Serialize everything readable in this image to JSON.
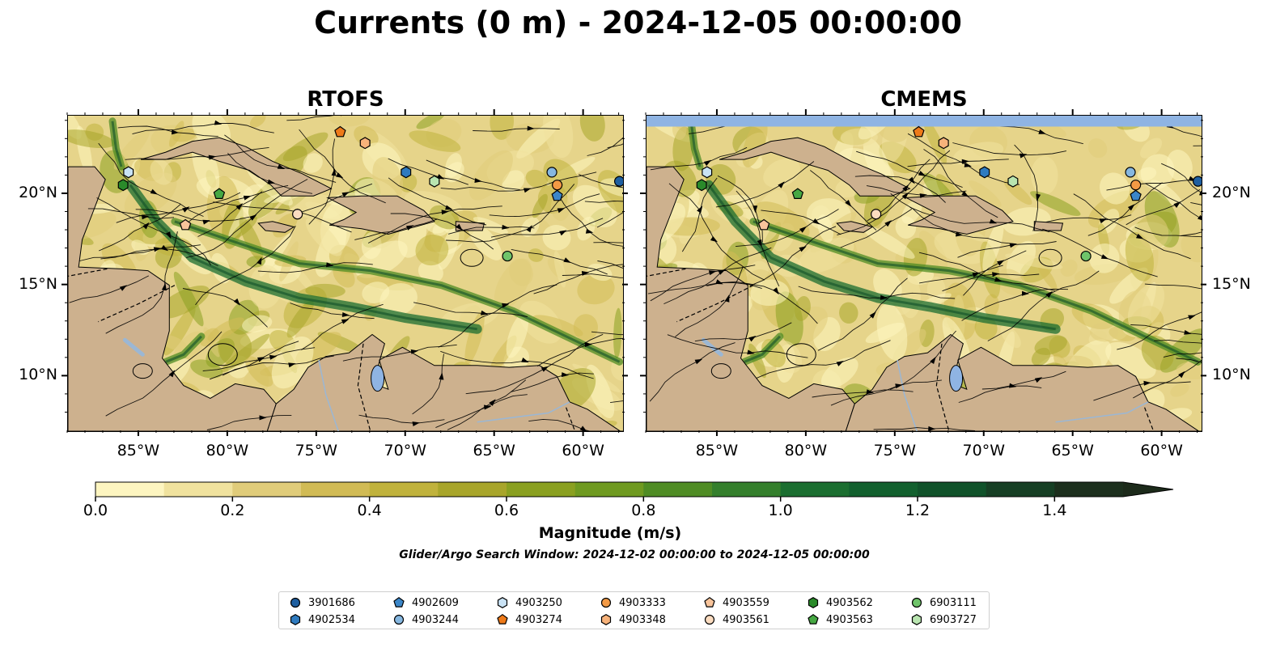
{
  "title": "Currents (0 m) - 2024-12-05 00:00:00",
  "panels": [
    {
      "title": "RTOFS",
      "has_nodata_band": false
    },
    {
      "title": "CMEMS",
      "has_nodata_band": true
    }
  ],
  "map": {
    "lon_range": [
      -89.0,
      -57.8
    ],
    "lat_range": [
      7.0,
      24.3
    ],
    "lon_ticks": [
      -85,
      -80,
      -75,
      -70,
      -65,
      -60
    ],
    "lon_tick_labels": [
      "85°W",
      "80°W",
      "75°W",
      "70°W",
      "65°W",
      "60°W"
    ],
    "lat_ticks": [
      10,
      15,
      20
    ],
    "lat_tick_labels": [
      "10°N",
      "15°N",
      "20°N"
    ],
    "colors": {
      "land": "#cdb18e",
      "water_inland": "#9bb7d4",
      "nodata": "#8fb4e3",
      "stream": "#000000"
    }
  },
  "colorbar": {
    "label": "Magnitude (m/s)",
    "min": 0.0,
    "max": 1.5,
    "extend": "max",
    "tick_values": [
      0.0,
      0.2,
      0.4,
      0.6,
      0.8,
      1.0,
      1.2,
      1.4
    ],
    "tick_labels": [
      "0.0",
      "0.2",
      "0.4",
      "0.6",
      "0.8",
      "1.0",
      "1.2",
      "1.4"
    ],
    "colors": [
      "#fdf5c0",
      "#f0e29e",
      "#e0cc7a",
      "#d1bb55",
      "#c0b23c",
      "#a8a52a",
      "#8aa020",
      "#6f9a20",
      "#4f8c24",
      "#347f2c",
      "#1b6e30",
      "#12602e",
      "#10522a",
      "#163f24",
      "#1c2f1d"
    ],
    "extend_color": "#1c2a1a"
  },
  "search_window": "Glider/Argo Search Window: 2024-12-02 00:00:00 to 2024-12-05 00:00:00",
  "legend": [
    {
      "id": "3901686",
      "marker": "circle",
      "color": "#1f5fa0"
    },
    {
      "id": "4902534",
      "marker": "hexagon",
      "color": "#2f7bbf"
    },
    {
      "id": "4902609",
      "marker": "pentagon",
      "color": "#3b86c8"
    },
    {
      "id": "4903244",
      "marker": "circle",
      "color": "#86b7e0"
    },
    {
      "id": "4903250",
      "marker": "hexagon",
      "color": "#c9e2f4"
    },
    {
      "id": "4903274",
      "marker": "pentagon",
      "color": "#ee7a1a"
    },
    {
      "id": "4903333",
      "marker": "circle",
      "color": "#f39a45"
    },
    {
      "id": "4903348",
      "marker": "hexagon",
      "color": "#f7b27a"
    },
    {
      "id": "4903559",
      "marker": "pentagon",
      "color": "#f8c49b"
    },
    {
      "id": "4903561",
      "marker": "circle",
      "color": "#fbdcc0"
    },
    {
      "id": "4903562",
      "marker": "hexagon",
      "color": "#2a8a2a"
    },
    {
      "id": "4903563",
      "marker": "pentagon",
      "color": "#46a843"
    },
    {
      "id": "6903111",
      "marker": "circle",
      "color": "#6fc46a"
    },
    {
      "id": "6903727",
      "marker": "hexagon",
      "color": "#b9e5b0"
    }
  ],
  "floats": [
    {
      "id": "3901686",
      "lon": -58.0,
      "lat": 20.7
    },
    {
      "id": "4902534",
      "lon": -70.0,
      "lat": 21.2
    },
    {
      "id": "4902609",
      "lon": -61.5,
      "lat": 19.9
    },
    {
      "id": "4903244",
      "lon": -61.8,
      "lat": 21.2
    },
    {
      "id": "4903250",
      "lon": -85.6,
      "lat": 21.2
    },
    {
      "id": "4903274",
      "lon": -73.7,
      "lat": 23.4
    },
    {
      "id": "4903333",
      "lon": -61.5,
      "lat": 20.5
    },
    {
      "id": "4903348",
      "lon": -72.3,
      "lat": 22.8
    },
    {
      "id": "4903559",
      "lon": -82.4,
      "lat": 18.3
    },
    {
      "id": "4903561",
      "lon": -76.1,
      "lat": 18.9
    },
    {
      "id": "4903562",
      "lon": -85.9,
      "lat": 20.5
    },
    {
      "id": "4903563",
      "lon": -80.5,
      "lat": 20.0
    },
    {
      "id": "6903111",
      "lon": -64.3,
      "lat": 16.6
    },
    {
      "id": "6903727",
      "lon": -68.4,
      "lat": 20.7
    }
  ]
}
